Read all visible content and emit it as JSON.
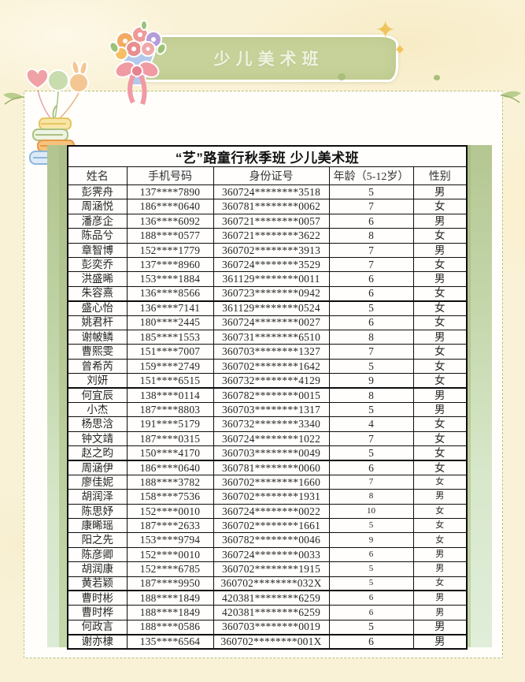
{
  "banner": {
    "title": "少儿美术班",
    "color": "#c7d29a"
  },
  "decorations": {
    "sparkle_star": "✦",
    "sparkle_diamond": "◆",
    "sparkle_small": "◆",
    "icons": [
      "bouquet-icon",
      "balloons-icon",
      "books-icon",
      "leaf-icon",
      "sparkle-icon"
    ]
  },
  "table": {
    "title": "“艺”路童行秋季班 少儿美术班",
    "columns": [
      "姓名",
      "手机号码",
      "身份证号",
      "年龄（5-12岁）",
      "性别"
    ],
    "rows": [
      {
        "name": "彭霁舟",
        "phone": "137****7890",
        "idno": "360724********3518",
        "age": "5",
        "gender": "男"
      },
      {
        "name": "周涵悦",
        "phone": "186****0640",
        "idno": "360781********0062",
        "age": "7",
        "gender": "女"
      },
      {
        "name": "潘彦企",
        "phone": "136****6092",
        "idno": "360721********0057",
        "age": "6",
        "gender": "男"
      },
      {
        "name": "陈品兮",
        "phone": "188****0577",
        "idno": "360721********3622",
        "age": "8",
        "gender": "女"
      },
      {
        "name": "章智博",
        "phone": "152****1779",
        "idno": "360702********3913",
        "age": "7",
        "gender": "男"
      },
      {
        "name": "彭奕乔",
        "phone": "137****8960",
        "idno": "360724********3529",
        "age": "7",
        "gender": "女"
      },
      {
        "name": "洪盛晞",
        "phone": "153****1884",
        "idno": "361129********0011",
        "age": "6",
        "gender": "男"
      },
      {
        "name": "朱容熹",
        "phone": "136****8566",
        "idno": "360723********0942",
        "age": "6",
        "gender": "女",
        "thick": true
      },
      {
        "name": "盛心怡",
        "phone": "136****7141",
        "idno": "361129********0524",
        "age": "5",
        "gender": "女"
      },
      {
        "name": "姚君杆",
        "phone": "180****2445",
        "idno": "360724********0027",
        "age": "6",
        "gender": "女"
      },
      {
        "name": "谢帔鳞",
        "phone": "185****1553",
        "idno": "360731********6510",
        "age": "8",
        "gender": "男"
      },
      {
        "name": "曹熙雯",
        "phone": "151****7007",
        "idno": "360703********1327",
        "age": "7",
        "gender": "女"
      },
      {
        "name": "曾希芮",
        "phone": "159****2749",
        "idno": "360702********1642",
        "age": "5",
        "gender": "女"
      },
      {
        "name": "刘妍",
        "phone": "151****6515",
        "idno": "360732********4129",
        "age": "9",
        "gender": "女",
        "thick": true
      },
      {
        "name": "何宜辰",
        "phone": "138****0114",
        "idno": "360782********0015",
        "age": "8",
        "gender": "男"
      },
      {
        "name": "小杰",
        "phone": "187****8803",
        "idno": "360703********1317",
        "age": "5",
        "gender": "男"
      },
      {
        "name": "杨思浛",
        "phone": "191****5179",
        "idno": "360732********3340",
        "age": "4",
        "gender": "女"
      },
      {
        "name": "钟文靖",
        "phone": "187****0315",
        "idno": "360724********1022",
        "age": "7",
        "gender": "女"
      },
      {
        "name": "赵之昀",
        "phone": "150****4170",
        "idno": "360703********0049",
        "age": "5",
        "gender": "女",
        "thick": true
      },
      {
        "name": "周涵伊",
        "phone": "186****0640",
        "idno": "360781********0060",
        "age": "6",
        "gender": "女"
      },
      {
        "name": "廖佳妮",
        "phone": "188****3782",
        "idno": "360702********1660",
        "age": "7",
        "gender": "女",
        "small": true
      },
      {
        "name": "胡润泽",
        "phone": "158****7536",
        "idno": "360702********1931",
        "age": "8",
        "gender": "男",
        "small": true
      },
      {
        "name": "陈思妤",
        "phone": "152****0010",
        "idno": "360724********0022",
        "age": "10",
        "gender": "女",
        "small": true
      },
      {
        "name": "康晞瑶",
        "phone": "187****2633",
        "idno": "360702********1661",
        "age": "5",
        "gender": "女",
        "small": true
      },
      {
        "name": "阳之先",
        "phone": "153****9794",
        "idno": "360782********0046",
        "age": "9",
        "gender": "女",
        "small": true
      },
      {
        "name": "陈彦卿",
        "phone": "152****0010",
        "idno": "360724********0033",
        "age": "6",
        "gender": "男",
        "small": true
      },
      {
        "name": "胡润康",
        "phone": "152****6785",
        "idno": "360702********1915",
        "age": "5",
        "gender": "男",
        "small": true
      },
      {
        "name": "黄若颖",
        "phone": "187****9950",
        "idno": "360702********032X",
        "age": "5",
        "gender": "女",
        "small": true,
        "thick": true
      },
      {
        "name": "曹时彬",
        "phone": "188****1849",
        "idno": "420381********6259",
        "age": "6",
        "gender": "男",
        "small": true
      },
      {
        "name": "曹时桦",
        "phone": "188****1849",
        "idno": "420381********6259",
        "age": "6",
        "gender": "男",
        "small": true
      },
      {
        "name": "何政言",
        "phone": "188****0586",
        "idno": "360703********0019",
        "age": "5",
        "gender": "男",
        "thick": true
      },
      {
        "name": "谢亦棣",
        "phone": "135****6564",
        "idno": "360702********001X",
        "age": "6",
        "gender": "男"
      }
    ]
  }
}
